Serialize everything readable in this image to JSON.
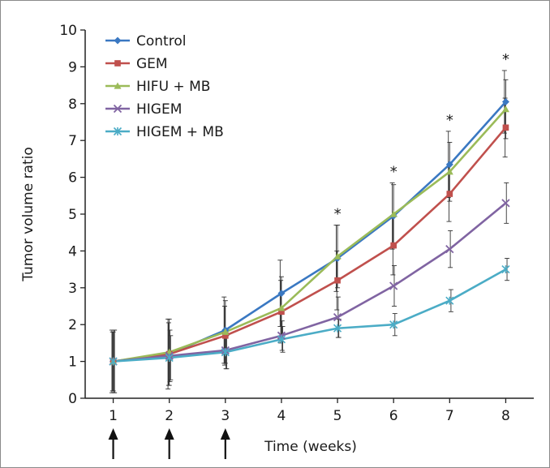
{
  "chart_data": {
    "type": "line",
    "title": "",
    "xlabel": "Time (weeks)",
    "ylabel": "Tumor volume ratio",
    "x": [
      1,
      2,
      3,
      4,
      5,
      6,
      7,
      8
    ],
    "xlim": [
      0.5,
      8.5
    ],
    "ylim": [
      0,
      10
    ],
    "yticks": [
      0,
      1,
      2,
      3,
      4,
      5,
      6,
      7,
      8,
      9,
      10
    ],
    "grid": false,
    "legend_position": "top-left",
    "series": [
      {
        "name": "Control",
        "color": "#3a78c2",
        "marker": "diamond",
        "values": [
          1.0,
          1.2,
          1.85,
          2.85,
          3.8,
          4.95,
          6.35,
          8.05
        ],
        "error": [
          0.85,
          0.95,
          0.9,
          0.9,
          0.9,
          0.9,
          0.9,
          0.85
        ]
      },
      {
        "name": "GEM",
        "color": "#c0504d",
        "marker": "square",
        "values": [
          1.0,
          1.2,
          1.7,
          2.35,
          3.2,
          4.15,
          5.55,
          7.35
        ],
        "error": [
          0.8,
          0.85,
          0.8,
          0.85,
          0.8,
          0.8,
          0.75,
          0.8
        ]
      },
      {
        "name": "HIFU + MB",
        "color": "#9bbb59",
        "marker": "triangle",
        "values": [
          1.0,
          1.25,
          1.8,
          2.45,
          3.85,
          5.0,
          6.15,
          7.85
        ],
        "error": [
          0.8,
          0.9,
          0.85,
          0.85,
          0.85,
          0.8,
          0.8,
          0.8
        ]
      },
      {
        "name": "HIGEM",
        "color": "#8064a2",
        "marker": "x",
        "values": [
          1.0,
          1.15,
          1.3,
          1.7,
          2.2,
          3.05,
          4.05,
          5.3
        ],
        "error": [
          0.85,
          0.7,
          0.5,
          0.4,
          0.55,
          0.55,
          0.5,
          0.55
        ]
      },
      {
        "name": "HIGEM + MB",
        "color": "#4bacc6",
        "marker": "star",
        "values": [
          1.0,
          1.1,
          1.25,
          1.6,
          1.9,
          2.0,
          2.65,
          3.5
        ],
        "error": [
          0.85,
          0.6,
          0.45,
          0.35,
          0.25,
          0.3,
          0.3,
          0.3
        ]
      }
    ],
    "significance": [
      {
        "x": 5,
        "label": "*"
      },
      {
        "x": 6,
        "label": "*"
      },
      {
        "x": 7,
        "label": "*"
      },
      {
        "x": 8,
        "label": "*"
      }
    ],
    "treatment_arrows_at_x": [
      1,
      2,
      3
    ]
  }
}
